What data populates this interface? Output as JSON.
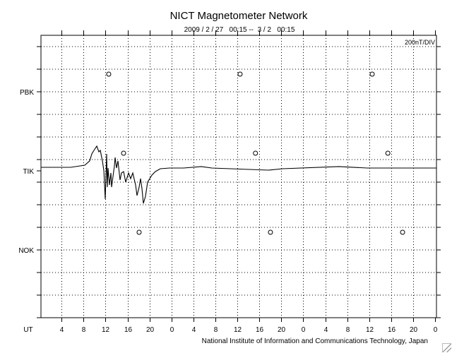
{
  "chart_data": {
    "type": "line",
    "title": "NICT Magnetometer Network",
    "subtitle": "2009 / 2 / 27   00:15 --  3 / 2   00:15",
    "scale_label": "200nT/DIV",
    "xlabel": "UT",
    "x_unit": "hours since 2009-02-27 00:00 UT",
    "xlim": [
      0.25,
      72.25
    ],
    "x_tick_labels": [
      "4",
      "8",
      "12",
      "16",
      "20",
      "0",
      "4",
      "8",
      "12",
      "16",
      "20",
      "0",
      "4",
      "8",
      "12",
      "16",
      "20",
      "0"
    ],
    "x_tick_hours": [
      4,
      8,
      12,
      16,
      20,
      24,
      28,
      32,
      36,
      40,
      44,
      48,
      52,
      56,
      60,
      64,
      68,
      72
    ],
    "y_scale_nT_per_div": 200,
    "stations": [
      {
        "name": "PBK",
        "noon_markers_hours": [
          12.59,
          36.5,
          60.55
        ]
      },
      {
        "name": "TIK",
        "noon_markers_hours": [
          15.29,
          39.3,
          63.4
        ]
      },
      {
        "name": "NOK",
        "noon_markers_hours": [
          18.12,
          42.03,
          66.08
        ]
      }
    ],
    "series": [
      {
        "name": "TIK",
        "points": [
          [
            0.25,
            6
          ],
          [
            5.65,
            6
          ],
          [
            8.22,
            25
          ],
          [
            9.12,
            63
          ],
          [
            9.51,
            125
          ],
          [
            9.89,
            156
          ],
          [
            10.41,
            194
          ],
          [
            10.79,
            144
          ],
          [
            11.05,
            156
          ],
          [
            11.44,
            63
          ],
          [
            11.7,
            -25
          ],
          [
            11.95,
            -275
          ],
          [
            12.21,
            125
          ],
          [
            12.34,
            -169
          ],
          [
            12.46,
            0
          ],
          [
            12.72,
            -150
          ],
          [
            12.98,
            -44
          ],
          [
            13.11,
            -169
          ],
          [
            13.62,
            19
          ],
          [
            13.75,
            94
          ],
          [
            14.01,
            0
          ],
          [
            14.27,
            63
          ],
          [
            14.65,
            -106
          ],
          [
            14.91,
            -44
          ],
          [
            15.29,
            -31
          ],
          [
            15.68,
            -125
          ],
          [
            16.19,
            -44
          ],
          [
            16.58,
            -94
          ],
          [
            16.96,
            -44
          ],
          [
            17.48,
            -150
          ],
          [
            17.74,
            -244
          ],
          [
            18.12,
            -169
          ],
          [
            18.38,
            -94
          ],
          [
            18.64,
            -181
          ],
          [
            18.89,
            -313
          ],
          [
            19.28,
            -250
          ],
          [
            19.67,
            -125
          ],
          [
            20.44,
            -63
          ],
          [
            21.08,
            -31
          ],
          [
            21.98,
            -6
          ],
          [
            23.65,
            0
          ],
          [
            26.22,
            0
          ],
          [
            29.44,
            13
          ],
          [
            31.36,
            0
          ],
          [
            41.65,
            -19
          ],
          [
            44.22,
            -6
          ],
          [
            54.5,
            13
          ],
          [
            59.65,
            0
          ],
          [
            72.25,
            0
          ]
        ]
      }
    ],
    "grid": true
  },
  "footer": "National Institute of Information and Communications Technology, Japan"
}
